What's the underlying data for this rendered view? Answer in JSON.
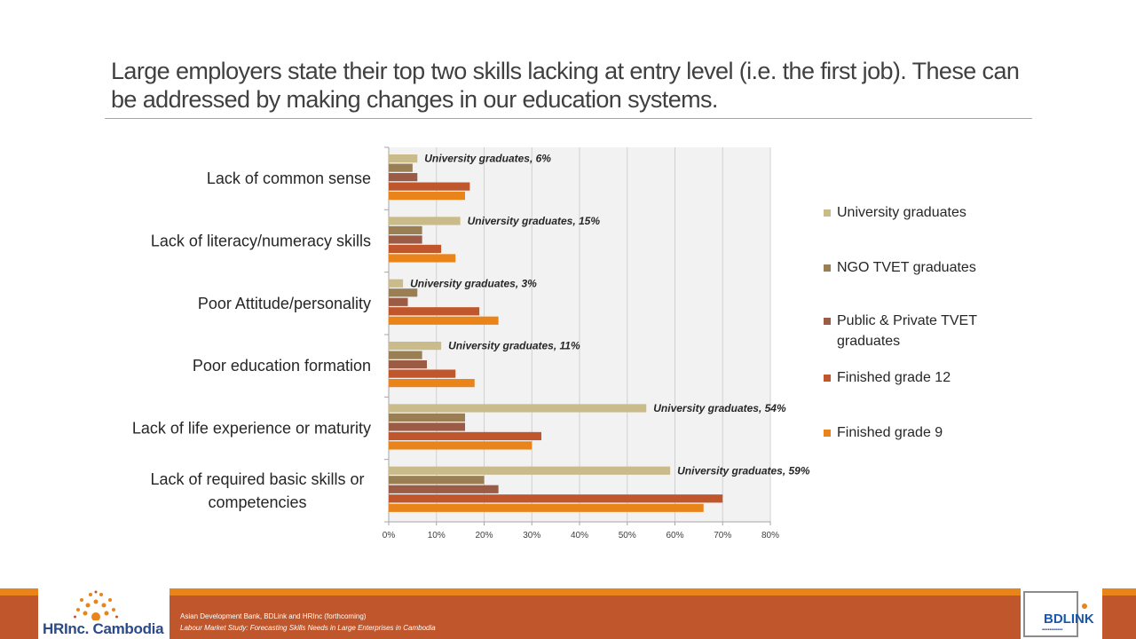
{
  "slide": {
    "title": "Large employers state their top two skills lacking at entry level (i.e. the first job).  These can be addressed by making changes in our education systems."
  },
  "chart_data": {
    "type": "bar",
    "orientation": "horizontal",
    "categories": [
      "Lack of common sense",
      "Lack of literacy/numeracy skills",
      "Poor Attitude/personality",
      "Poor education formation",
      "Lack of life experience or maturity",
      "Lack of required basic skills or competencies"
    ],
    "category_lines": [
      [
        "Lack of common sense"
      ],
      [
        "Lack of literacy/numeracy skills"
      ],
      [
        "Poor Attitude/personality"
      ],
      [
        "Poor education formation"
      ],
      [
        "Lack of life experience or maturity"
      ],
      [
        "Lack of required basic skills or",
        "competencies"
      ]
    ],
    "series": [
      {
        "name": "University graduates",
        "color": "#c9bb8a",
        "values": [
          6,
          15,
          3,
          11,
          54,
          59
        ]
      },
      {
        "name": "NGO TVET graduates",
        "color": "#9a7f55",
        "values": [
          5,
          7,
          6,
          7,
          16,
          20
        ]
      },
      {
        "name": "Public & Private TVET graduates",
        "color": "#9c5b44",
        "values": [
          6,
          7,
          4,
          8,
          16,
          23
        ]
      },
      {
        "name": "Finished grade 12",
        "color": "#c0562b",
        "values": [
          17,
          11,
          19,
          14,
          32,
          70
        ]
      },
      {
        "name": "Finished grade 9",
        "color": "#e8841a",
        "values": [
          16,
          14,
          23,
          18,
          30,
          66
        ]
      }
    ],
    "data_labels": [
      "University graduates, 6%",
      "University graduates, 15%",
      "University graduates, 3%",
      "University graduates, 11%",
      "University graduates, 54%",
      "University graduates, 59%"
    ],
    "xlim": [
      0,
      80
    ],
    "x_ticks": [
      0,
      10,
      20,
      30,
      40,
      50,
      60,
      70,
      80
    ],
    "x_tick_labels": [
      "0%",
      "10%",
      "20%",
      "30%",
      "40%",
      "50%",
      "60%",
      "70%",
      "80%"
    ],
    "grid": true,
    "legend_position": "right"
  },
  "legend": {
    "items": [
      {
        "lines": [
          "University graduates"
        ],
        "color": "#c9bb8a"
      },
      {
        "lines": [
          "NGO TVET graduates"
        ],
        "color": "#9a7f55"
      },
      {
        "lines": [
          "Public & Private TVET",
          "graduates"
        ],
        "color": "#9c5b44"
      },
      {
        "lines": [
          "Finished grade 12"
        ],
        "color": "#c0562b"
      },
      {
        "lines": [
          "Finished grade 9"
        ],
        "color": "#e8841a"
      }
    ]
  },
  "footer": {
    "citation_line1": "Asian Development Bank, BDLink and HRInc (forthcoming)",
    "citation_line2": "Labour Market Study: Forecasting Skills Needs in Large Enterprises in Cambodia",
    "left_logo": {
      "part1": "HRInc.",
      "part2": "Cambodia"
    },
    "right_logo": {
      "name": "BDLINK"
    }
  }
}
